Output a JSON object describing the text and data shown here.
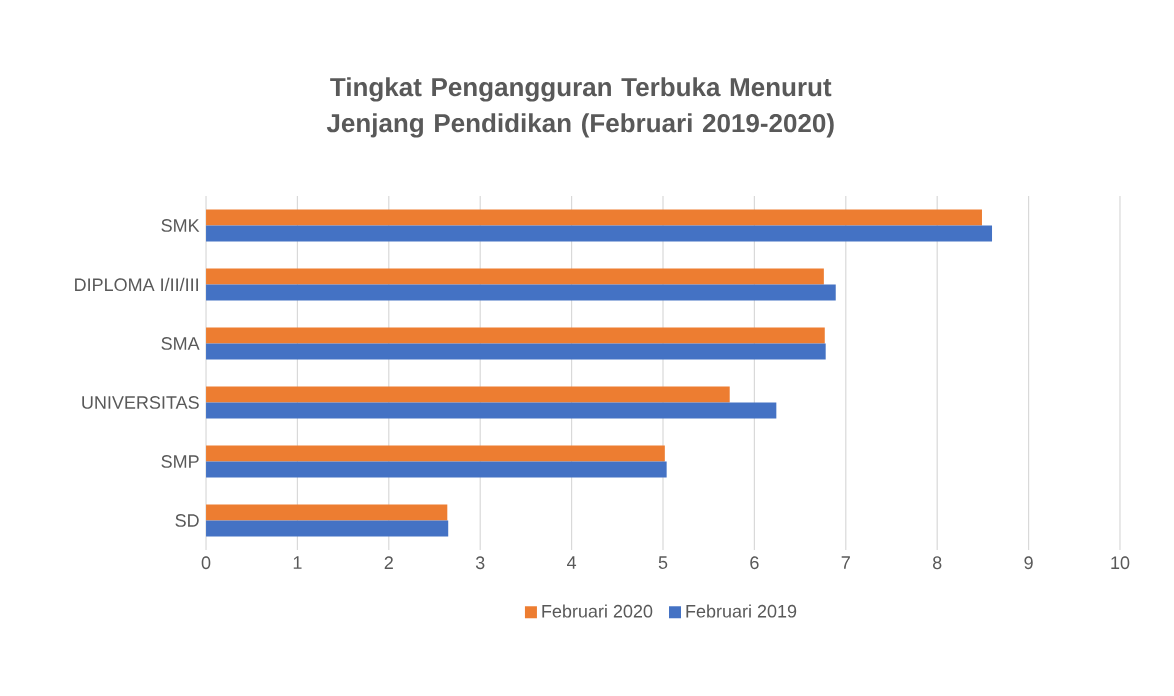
{
  "chart_data": {
    "type": "bar",
    "orientation": "horizontal",
    "title": "Tingkat Pengangguran Terbuka Menurut Jenjang Pendidikan (Februari 2019-2020)",
    "categories": [
      "SMK",
      "DIPLOMA I/II/III",
      "SMA",
      "UNIVERSITAS",
      "SMP",
      "SD"
    ],
    "series": [
      {
        "name": "Februari 2020",
        "color": "#ed7d31",
        "values": [
          8.49,
          6.76,
          6.77,
          5.73,
          5.02,
          2.64
        ]
      },
      {
        "name": "Februari 2019",
        "color": "#4472c4",
        "values": [
          8.6,
          6.89,
          6.78,
          6.24,
          5.04,
          2.65
        ]
      }
    ],
    "xlim": [
      0,
      10
    ],
    "xticks": [
      0,
      1,
      2,
      3,
      4,
      5,
      6,
      7,
      8,
      9,
      10
    ],
    "grid": "x",
    "legend": "bottom"
  }
}
